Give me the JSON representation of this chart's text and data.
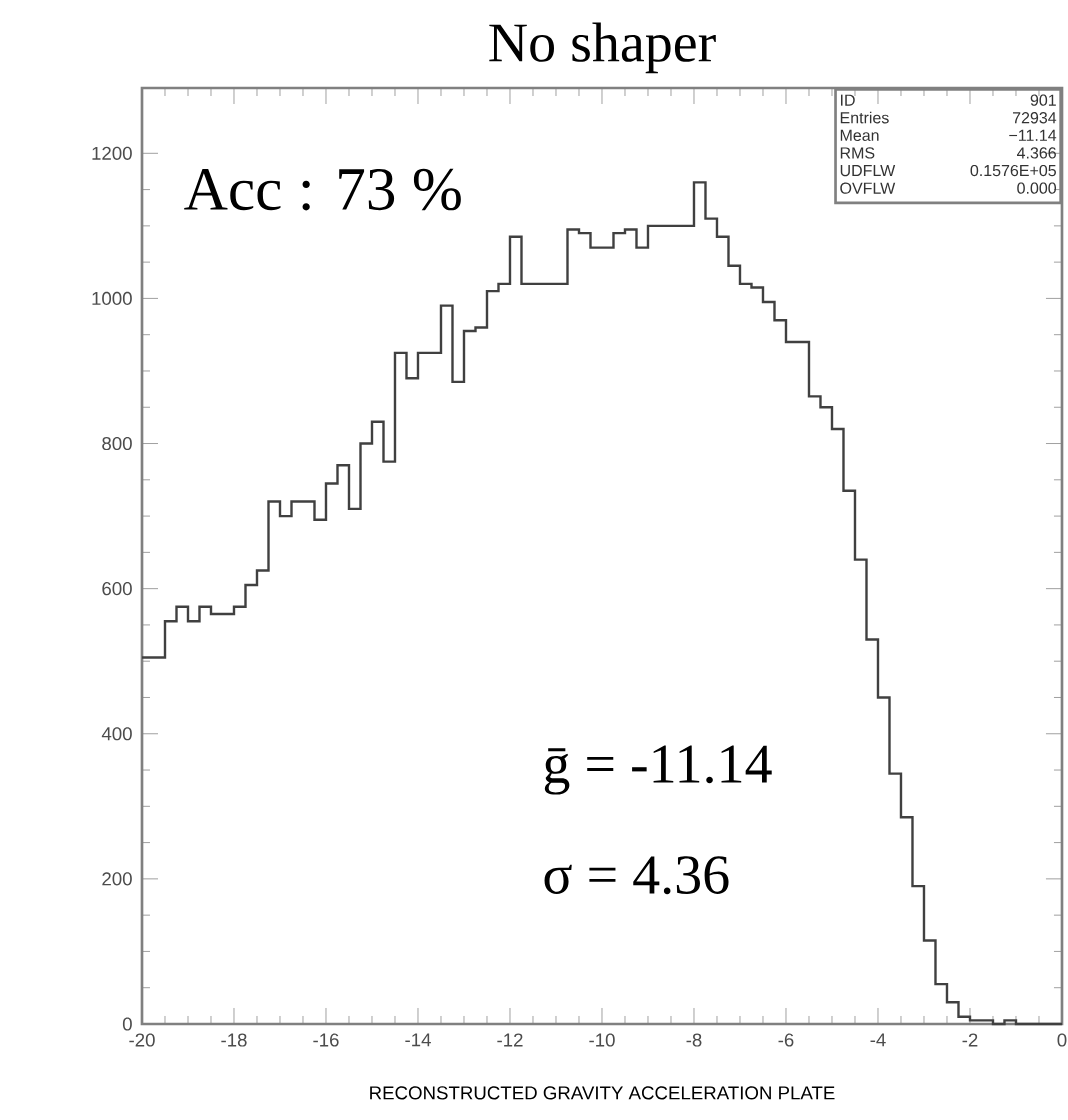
{
  "chart_data": {
    "type": "histogram",
    "title": "No shaper",
    "xlabel": "RECONSTRUCTED GRAVITY ACCELERATION PLATE",
    "bins": [
      -20,
      -19.75,
      -19.5,
      -19.25,
      -19,
      -18.75,
      -18.5,
      -18.25,
      -18,
      -17.75,
      -17.5,
      -17.25,
      -17,
      -16.75,
      -16.5,
      -16.25,
      -16,
      -15.75,
      -15.5,
      -15.25,
      -15,
      -14.75,
      -14.5,
      -14.25,
      -14,
      -13.75,
      -13.5,
      -13.25,
      -13,
      -12.75,
      -12.5,
      -12.25,
      -12,
      -11.75,
      -11.5,
      -11.25,
      -11,
      -10.75,
      -10.5,
      -10.25,
      -10,
      -9.75,
      -9.5,
      -9.25,
      -9,
      -8.75,
      -8.5,
      -8.25,
      -8,
      -7.75,
      -7.5,
      -7.25,
      -7,
      -6.75,
      -6.5,
      -6.25,
      -6,
      -5.75,
      -5.5,
      -5.25,
      -5,
      -4.75,
      -4.5,
      -4.25,
      -4,
      -3.75,
      -3.5,
      -3.25,
      -3,
      -2.75,
      -2.5,
      -2.25,
      -2,
      -1.75,
      -1.5,
      -1.25,
      -1,
      -0.75,
      -0.5,
      -0.25,
      0
    ],
    "values": [
      505,
      505,
      555,
      575,
      555,
      575,
      565,
      565,
      575,
      605,
      625,
      720,
      700,
      720,
      720,
      695,
      745,
      770,
      710,
      800,
      830,
      775,
      925,
      890,
      925,
      925,
      990,
      885,
      955,
      960,
      1010,
      1020,
      1085,
      1020,
      1020,
      1020,
      1020,
      1095,
      1090,
      1070,
      1070,
      1090,
      1095,
      1070,
      1100,
      1100,
      1100,
      1100,
      1160,
      1110,
      1085,
      1045,
      1020,
      1015,
      995,
      970,
      940,
      940,
      865,
      850,
      820,
      735,
      640,
      530,
      450,
      345,
      285,
      190,
      115,
      55,
      30,
      10,
      5,
      5,
      0,
      5,
      0,
      0,
      0,
      0
    ],
    "color": "#404040",
    "xlim": [
      -20,
      0
    ],
    "ylim": [
      0,
      1290
    ],
    "xticks": [
      -20,
      -18,
      -16,
      -14,
      -12,
      -10,
      -8,
      -6,
      -4,
      -2,
      0
    ],
    "yticks": [
      0,
      200,
      400,
      600,
      800,
      1000,
      1200
    ],
    "grid": false,
    "annotations": [
      "Acc : 73 %",
      "ḡ = -11.14",
      "σ = 4.36",
      "ID",
      "901",
      "Entries",
      "72934",
      "Mean",
      "−11.14",
      "RMS",
      "4.366",
      "UDFLW",
      "0.1576E+05",
      "OVFLW",
      "0.000"
    ]
  }
}
